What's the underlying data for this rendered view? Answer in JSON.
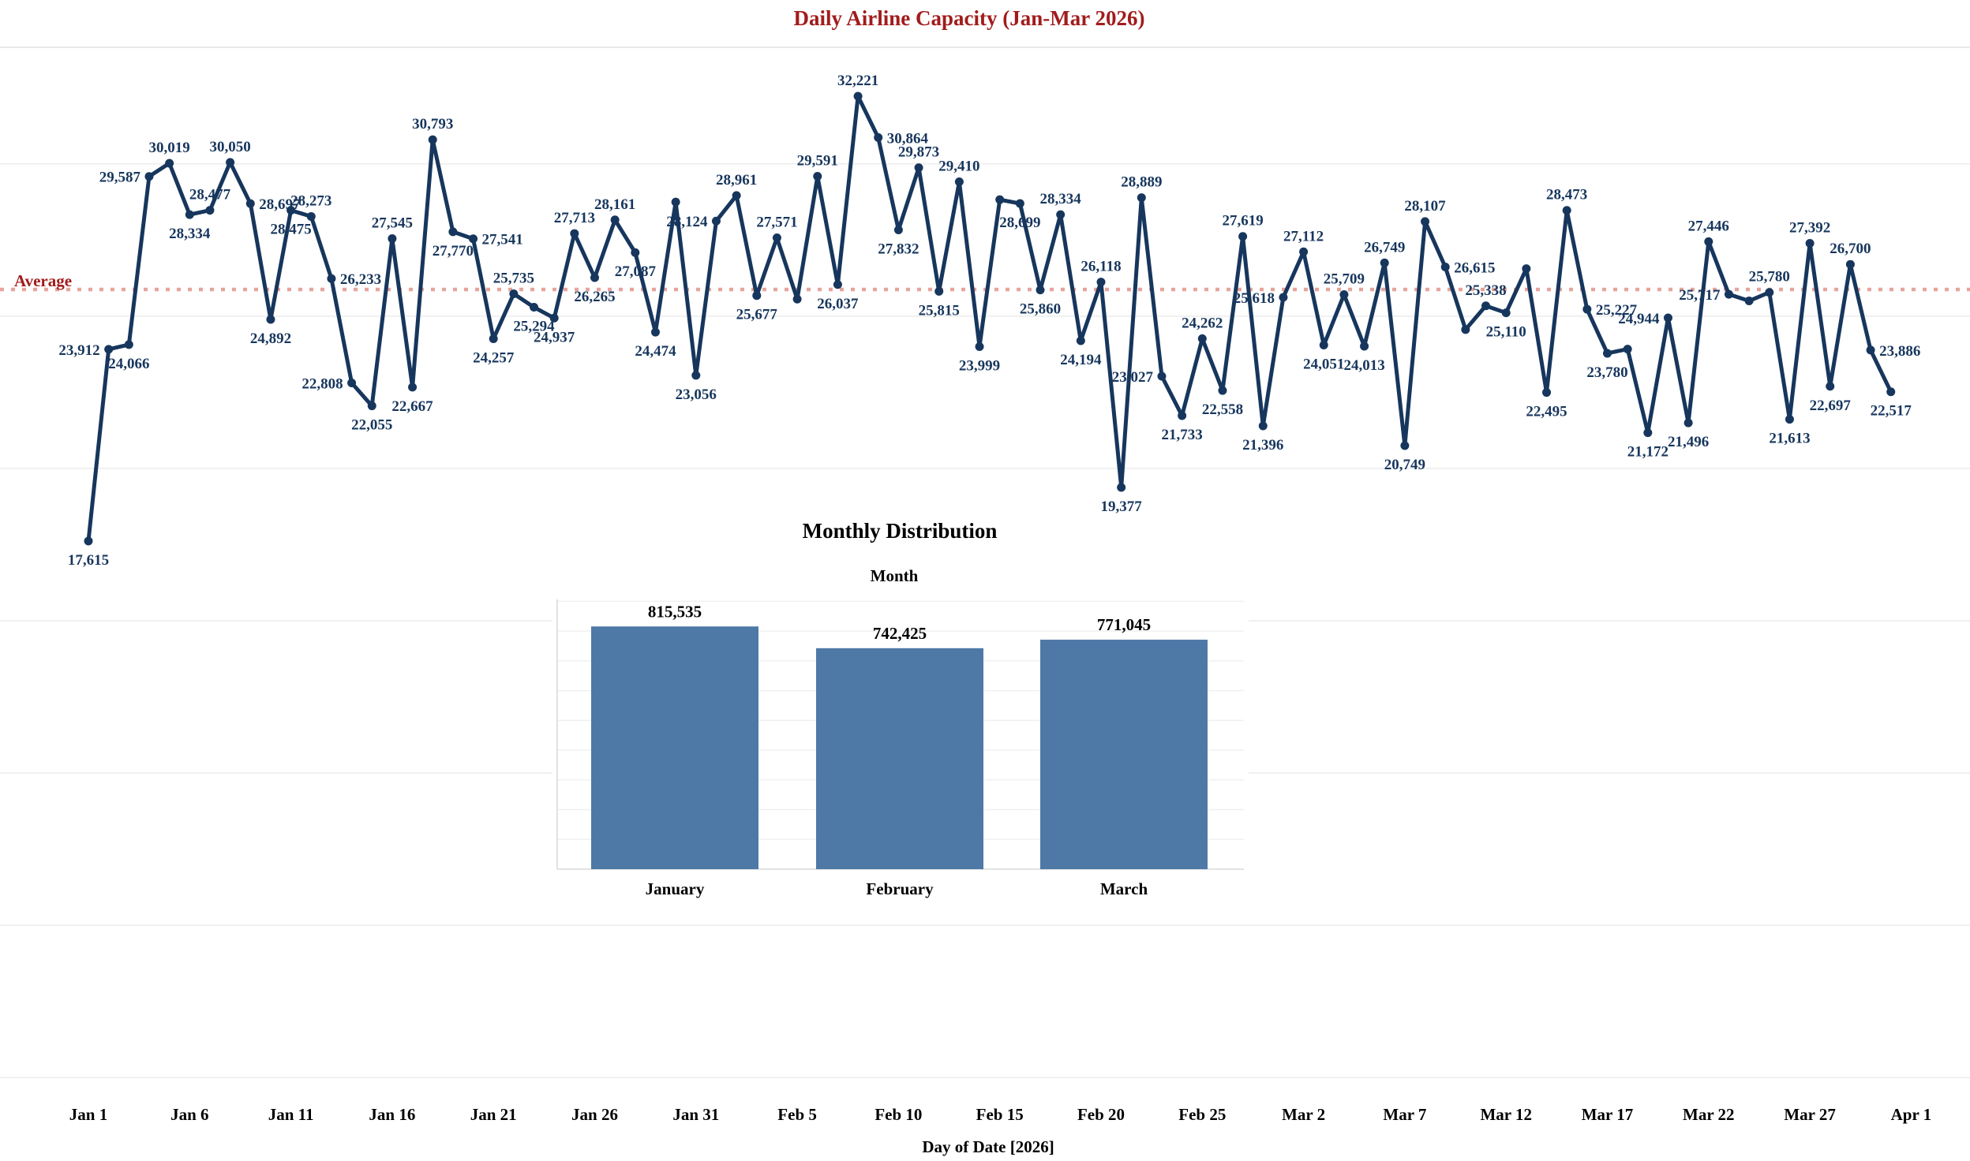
{
  "page": {
    "title": "Daily Airline Capacity (Jan-Mar 2026)",
    "average_label": "Average",
    "x_axis_title": "Day of Date [2026]"
  },
  "colors": {
    "navy": "#17365d",
    "title_red": "#a11c1c",
    "average_line": "#e6a49c",
    "bar_blue": "#4e79a7",
    "page_grid": "#ececec",
    "inset_grid": "#f0f0f0",
    "axis_gray": "#d9d9d9",
    "black": "#000000"
  },
  "chart_data": [
    {
      "type": "line",
      "title": "Daily Airline Capacity (Jan-Mar 2026)",
      "xlabel": "Day of Date [2026]",
      "x_start": "Jan 1 2026",
      "x_end": "Mar 31 2026",
      "x_tick_labels": [
        "Jan 1",
        "Jan 6",
        "Jan 11",
        "Jan 16",
        "Jan 21",
        "Jan 26",
        "Jan 31",
        "Feb 5",
        "Feb 10",
        "Feb 15",
        "Feb 20",
        "Feb 25",
        "Mar 2",
        "Mar 7",
        "Mar 12",
        "Mar 17",
        "Mar 22",
        "Mar 27",
        "Apr 1"
      ],
      "y_gridline_values": [
        30000,
        25000,
        20000,
        15000,
        10000,
        5000,
        0
      ],
      "average_value": 25877.8,
      "average_label": "Average",
      "legend": "none",
      "values": [
        17615,
        23912,
        24066,
        29587,
        30019,
        28334,
        28477,
        30050,
        28697,
        24892,
        28475,
        28273,
        26233,
        22808,
        22055,
        27545,
        22667,
        30793,
        27770,
        27541,
        24257,
        25735,
        25294,
        24937,
        27713,
        26265,
        28161,
        27087,
        24474,
        28747,
        23056,
        28124,
        28961,
        25677,
        27571,
        25560,
        29591,
        26037,
        32221,
        30864,
        27832,
        29873,
        25815,
        29410,
        23999,
        28824,
        28699,
        25860,
        28334,
        24194,
        26118,
        19377,
        28889,
        23027,
        21733,
        24262,
        22558,
        27619,
        21396,
        25618,
        27112,
        24051,
        25709,
        24013,
        26749,
        20749,
        28107,
        26615,
        24560,
        25338,
        25110,
        26560,
        22495,
        28473,
        25227,
        23780,
        23919,
        21172,
        24944,
        21496,
        27446,
        25717,
        25500,
        25780,
        21613,
        27392,
        22697,
        26700,
        23886,
        22517
      ],
      "point_labels": [
        "17,615",
        "23,912",
        "24,066",
        "29,587",
        "30,019",
        "28,334",
        "28,477",
        "30,050",
        "28,697",
        "24,892",
        "28,475",
        "28,273",
        "26,233",
        "22,808",
        "22,055",
        "27,545",
        "22,667",
        "30,793",
        "27,770",
        "27,541",
        "24,257",
        "25,735",
        "25,294",
        "24,937",
        "27,713",
        "26,265",
        "28,161",
        "27,087",
        "24,474",
        null,
        "23,056",
        "28,124",
        "28,961",
        "25,677",
        "27,571",
        null,
        "29,591",
        "26,037",
        "32,221",
        "30,864",
        "27,832",
        "29,873",
        "25,815",
        "29,410",
        "23,999",
        null,
        "28,699",
        "25,860",
        "28,334",
        "24,194",
        "26,118",
        "19,377",
        "28,889",
        "23,027",
        "21,733",
        "24,262",
        "22,558",
        "27,619",
        "21,396",
        "25,618",
        "27,112",
        "24,051",
        "25,709",
        "24,013",
        "26,749",
        "20,749",
        "28,107",
        "26,615",
        null,
        "25,338",
        "25,110",
        null,
        "22,495",
        "28,473",
        "25,227",
        "23,780",
        null,
        "21,172",
        "24,944",
        "21,496",
        "27,446",
        "25,717",
        null,
        "25,780",
        "21,613",
        "27,392",
        "22,697",
        "26,700",
        "23,886",
        "22,517"
      ]
    },
    {
      "type": "bar",
      "title": "Monthly Distribution",
      "subtitle": "Month",
      "categories": [
        "January",
        "February",
        "March"
      ],
      "values": [
        815535,
        742425,
        771045
      ],
      "value_labels": [
        "815,535",
        "742,425",
        "771,045"
      ],
      "ylim": [
        0,
        900000
      ],
      "grid_step": 100000
    }
  ]
}
